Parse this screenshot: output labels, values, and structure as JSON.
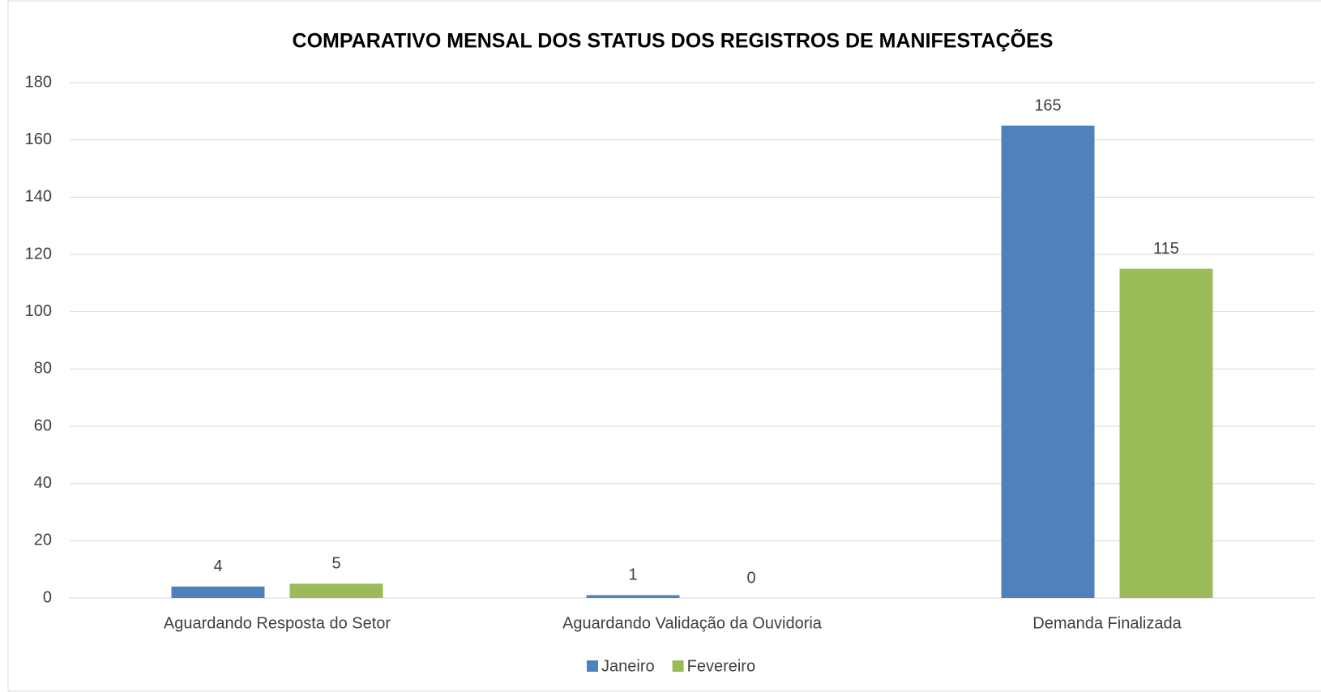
{
  "chart_data": {
    "type": "bar",
    "title": "COMPARATIVO MENSAL DOS STATUS DOS REGISTROS DE MANIFESTAÇÕES",
    "categories": [
      "Aguardando Resposta do Setor",
      "Aguardando Validação da Ouvidoria",
      "Demanda Finalizada"
    ],
    "series": [
      {
        "name": "Janeiro",
        "color": "#4f81bd",
        "values": [
          4,
          1,
          165
        ]
      },
      {
        "name": "Fevereiro",
        "color": "#9bbb59",
        "values": [
          5,
          0,
          115
        ]
      }
    ],
    "ylim": [
      0,
      180
    ],
    "yticks": [
      0,
      20,
      40,
      60,
      80,
      100,
      120,
      140,
      160,
      180
    ],
    "grid": true,
    "legend": "bottom"
  }
}
